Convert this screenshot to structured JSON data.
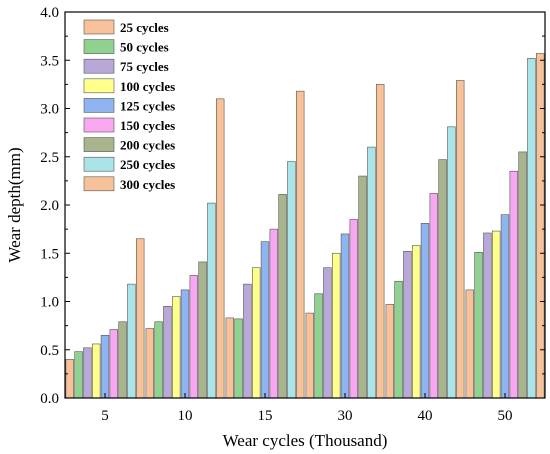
{
  "chart_data": {
    "type": "bar",
    "title": "",
    "xlabel": "Wear cycles (Thousand)",
    "ylabel": "Wear depth(mm)",
    "ylim": [
      0,
      4.0
    ],
    "yticks": [
      "0.0",
      "0.5",
      "1.0",
      "1.5",
      "2.0",
      "2.5",
      "3.0",
      "3.5",
      "4.0"
    ],
    "categories": [
      "5",
      "10",
      "15",
      "30",
      "40",
      "50"
    ],
    "legend_position": "top-left",
    "grid": false,
    "series": [
      {
        "name": "25 cycles",
        "color": "#f7c29a",
        "values": [
          0.4,
          0.72,
          0.83,
          0.88,
          0.97,
          1.12
        ]
      },
      {
        "name": "50 cycles",
        "color": "#8fd18f",
        "values": [
          0.48,
          0.79,
          0.82,
          1.08,
          1.21,
          1.51
        ]
      },
      {
        "name": "75 cycles",
        "color": "#b8a8d8",
        "values": [
          0.52,
          0.95,
          1.18,
          1.35,
          1.52,
          1.71
        ]
      },
      {
        "name": "100 cycles",
        "color": "#ffff8c",
        "values": [
          0.56,
          1.05,
          1.35,
          1.5,
          1.58,
          1.73
        ]
      },
      {
        "name": "125 cycles",
        "color": "#8fb4f0",
        "values": [
          0.65,
          1.12,
          1.62,
          1.7,
          1.81,
          1.9
        ]
      },
      {
        "name": "150 cycles",
        "color": "#f7a8f0",
        "values": [
          0.71,
          1.27,
          1.75,
          1.85,
          2.12,
          2.35
        ]
      },
      {
        "name": "200 cycles",
        "color": "#a8b48c",
        "values": [
          0.79,
          1.41,
          2.11,
          2.3,
          2.47,
          2.55
        ]
      },
      {
        "name": "250 cycles",
        "color": "#a8e4e8",
        "values": [
          1.18,
          2.02,
          2.45,
          2.6,
          2.81,
          3.52
        ]
      },
      {
        "name": "300 cycles",
        "color": "#f7c29a",
        "values": [
          1.65,
          3.1,
          3.18,
          3.25,
          3.29,
          3.57
        ]
      }
    ]
  }
}
